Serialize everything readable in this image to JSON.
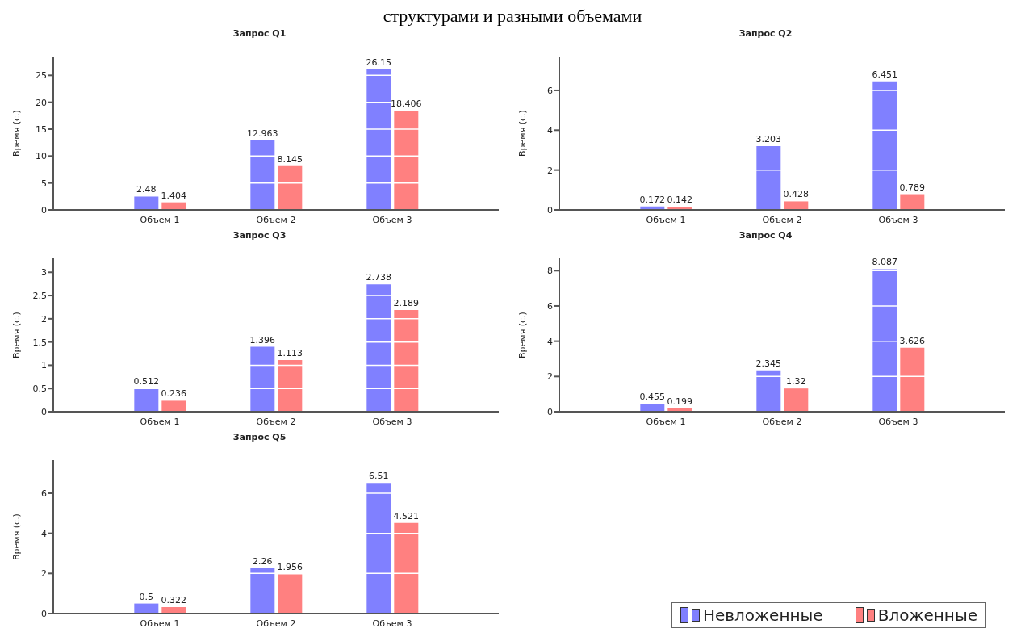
{
  "chart_data": [
    {
      "type": "bar",
      "title": "Запрос Q1",
      "ylabel": "Время (с.)",
      "annotations": [
        "структурами и разными объемами"
      ],
      "categories": [
        "Объем 1",
        "Объем 2",
        "Объем 3"
      ],
      "series": [
        {
          "color": "#8080ff",
          "values": [
            2.48,
            12.963,
            26.15
          ]
        },
        {
          "color": "#ff8080",
          "values": [
            1.404,
            8.145,
            18.406
          ]
        }
      ],
      "ylim": [
        0,
        28.5
      ],
      "yticks": [
        0,
        5,
        10,
        15,
        20,
        25
      ],
      "grid": "y",
      "data_labels": true
    },
    {
      "type": "bar",
      "title": "Запрос Q2",
      "ylabel": "Время (с.)",
      "categories": [
        "Объем 1",
        "Объем 2",
        "Объем 3"
      ],
      "series": [
        {
          "color": "#8080ff",
          "values": [
            0.172,
            3.203,
            6.451
          ]
        },
        {
          "color": "#ff8080",
          "values": [
            0.142,
            0.428,
            0.789
          ]
        }
      ],
      "ylim": [
        0,
        7.7
      ],
      "yticks": [
        0,
        2,
        4,
        6
      ],
      "grid": "y",
      "data_labels": true
    },
    {
      "type": "bar",
      "title": "Запрос Q3",
      "ylabel": "Время (с.)",
      "categories": [
        "Объем 1",
        "Объем 2",
        "Объем 3"
      ],
      "series": [
        {
          "color": "#8080ff",
          "values": [
            0.512,
            1.396,
            2.738
          ]
        },
        {
          "color": "#ff8080",
          "values": [
            0.236,
            1.113,
            2.189
          ]
        }
      ],
      "ylim": [
        0,
        3.3
      ],
      "yticks": [
        0,
        0.5,
        1,
        1.5,
        2,
        2.5,
        3
      ],
      "grid": "y",
      "data_labels": true
    },
    {
      "type": "bar",
      "title": "Запрос Q4",
      "ylabel": "Время (с.)",
      "categories": [
        "Объем 1",
        "Объем 2",
        "Объем 3"
      ],
      "series": [
        {
          "color": "#8080ff",
          "values": [
            0.455,
            2.345,
            8.087
          ]
        },
        {
          "color": "#ff8080",
          "values": [
            0.199,
            1.32,
            3.626
          ]
        }
      ],
      "ylim": [
        0,
        8.7
      ],
      "yticks": [
        0,
        2,
        4,
        6,
        8
      ],
      "grid": "y",
      "data_labels": true
    },
    {
      "type": "bar",
      "title": "Запрос Q5",
      "ylabel": "Время (с.)",
      "categories": [
        "Объем 1",
        "Объем 2",
        "Объем 3"
      ],
      "series": [
        {
          "name": "Невложенные",
          "color": "#8080ff",
          "values": [
            0.5,
            2.26,
            6.51
          ]
        },
        {
          "name": "Вложенные",
          "color": "#ff8080",
          "values": [
            0.322,
            1.956,
            4.521
          ]
        }
      ],
      "ylim": [
        0,
        7.65
      ],
      "yticks": [
        0,
        2,
        4,
        6
      ],
      "grid": "y",
      "data_labels": true,
      "legend": "right"
    }
  ]
}
